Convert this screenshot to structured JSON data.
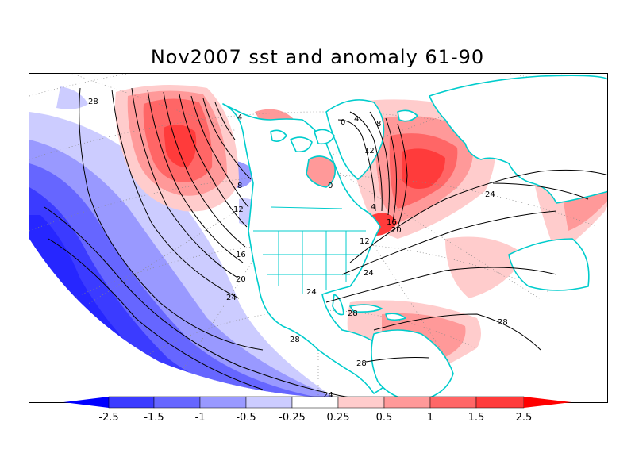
{
  "title": "Nov2007 sst and anomaly 61-90",
  "colors": {
    "neg_strong": "#0000ff",
    "neg_2": "#3b3bff",
    "neg_3": "#6666ff",
    "neg_4": "#9999ff",
    "neg_5": "#ccccff",
    "neutral": "#ffffff",
    "pos_1": "#ffcccc",
    "pos_2": "#ff9999",
    "pos_3": "#ff6666",
    "pos_4": "#ff3b3b",
    "pos_strong": "#ff0000",
    "coast": "#00cccc",
    "contour": "#000000"
  },
  "contour_labels": {
    "pacific": [
      "28",
      "4",
      "8",
      "12",
      "16",
      "20",
      "24",
      "28",
      "24"
    ],
    "atlantic": [
      "0",
      "4",
      "8",
      "12",
      "0",
      "4",
      "16",
      "20",
      "12",
      "24",
      "24",
      "24",
      "28",
      "28",
      "28"
    ]
  },
  "colorbar": {
    "labels": [
      "-2.5",
      "-1.5",
      "-1",
      "-0.5",
      "-0.25",
      "0.25",
      "0.5",
      "1",
      "1.5",
      "2.5"
    ]
  }
}
